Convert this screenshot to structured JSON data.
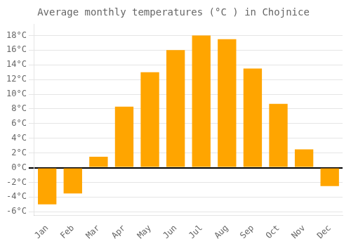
{
  "chart_data": {
    "type": "bar",
    "title": "Average monthly temperatures (°C ) in Chojnice",
    "categories": [
      "Jan",
      "Feb",
      "Mar",
      "Apr",
      "May",
      "Jun",
      "Jul",
      "Aug",
      "Sep",
      "Oct",
      "Nov",
      "Dec"
    ],
    "values": [
      -5.0,
      -3.5,
      1.5,
      8.3,
      13.0,
      16.0,
      18.0,
      17.5,
      13.5,
      8.7,
      2.5,
      -2.5
    ],
    "color": "#FFA500",
    "ylim": [
      -6.5,
      19.5
    ],
    "yticks": [
      {
        "value": -6,
        "label": "-6°C"
      },
      {
        "value": -4,
        "label": "-4°C"
      },
      {
        "value": -2,
        "label": "-2°C"
      },
      {
        "value": 0,
        "label": "0°C"
      },
      {
        "value": 2,
        "label": "2°C"
      },
      {
        "value": 4,
        "label": "4°C"
      },
      {
        "value": 6,
        "label": "6°C"
      },
      {
        "value": 8,
        "label": "8°C"
      },
      {
        "value": 10,
        "label": "10°C"
      },
      {
        "value": 12,
        "label": "12°C"
      },
      {
        "value": 14,
        "label": "14°C"
      },
      {
        "value": 16,
        "label": "16°C"
      },
      {
        "value": 18,
        "label": "18°C"
      }
    ],
    "grid": true
  }
}
